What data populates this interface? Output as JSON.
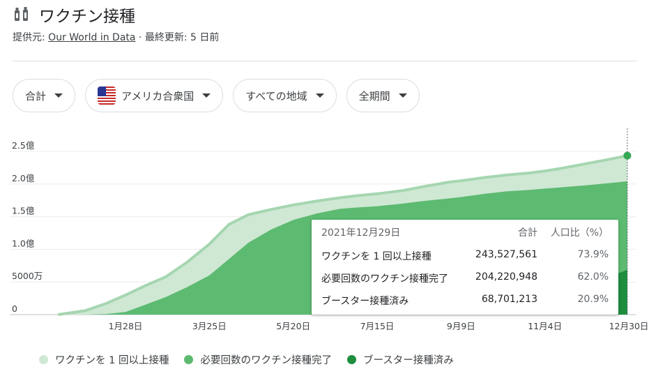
{
  "header": {
    "title": "ワクチン接種",
    "source_prefix": "提供元:",
    "source_link": "Our World in Data",
    "updated": " · 最終更新: 5 日前"
  },
  "filters": [
    {
      "label": "合計"
    },
    {
      "label": "アメリカ合衆国"
    },
    {
      "label": "すべての地域"
    },
    {
      "label": "全期間"
    }
  ],
  "tooltip": {
    "date": "2021年12月29日",
    "col_total": "合計",
    "col_pct": "人口比（%）",
    "rows": [
      {
        "label": "ワクチンを 1 回以上接種",
        "value": "243,527,561",
        "pct": "73.9%"
      },
      {
        "label": "必要回数のワクチン接種完了",
        "value": "204,220,948",
        "pct": "62.0%"
      },
      {
        "label": "ブースター接種済み",
        "value": "68,701,213",
        "pct": "20.9%"
      }
    ]
  },
  "colors": {
    "light": "#cfe8d4",
    "light_edge": "#a5d6b0",
    "medium": "#5dba71",
    "dark": "#1e8e3e"
  },
  "chart_data": {
    "type": "area",
    "x": [
      "2020-12-14",
      "2021-01-01",
      "2021-01-15",
      "2021-01-28",
      "2021-02-10",
      "2021-02-24",
      "2021-03-10",
      "2021-03-25",
      "2021-04-07",
      "2021-04-20",
      "2021-05-05",
      "2021-05-20",
      "2021-06-05",
      "2021-06-20",
      "2021-07-01",
      "2021-07-15",
      "2021-08-01",
      "2021-08-15",
      "2021-09-01",
      "2021-09-09",
      "2021-09-25",
      "2021-10-10",
      "2021-10-25",
      "2021-11-04",
      "2021-11-15",
      "2021-12-01",
      "2021-12-15",
      "2021-12-29"
    ],
    "series": [
      {
        "name": "ワクチンを 1 回以上接種",
        "values": [
          0,
          6,
          17,
          30,
          44,
          58,
          80,
          108,
          138,
          153,
          161,
          168,
          174,
          179,
          182,
          185,
          190,
          196,
          203,
          205,
          210,
          214,
          217,
          220,
          224,
          231,
          237,
          243.5
        ]
      },
      {
        "name": "必要回数のワクチン接種完了",
        "values": [
          0,
          0,
          1,
          4,
          15,
          27,
          42,
          60,
          85,
          110,
          130,
          145,
          155,
          162,
          164,
          166,
          170,
          174,
          178,
          180,
          185,
          189,
          191,
          193,
          195,
          198,
          201,
          204.2
        ]
      },
      {
        "name": "ブースター接種済み",
        "values": [
          0,
          0,
          0,
          0,
          0,
          0,
          0,
          0,
          0,
          0,
          0,
          0,
          0,
          0,
          0,
          0,
          0,
          0,
          0,
          0,
          0,
          2,
          12,
          22,
          33,
          45,
          56,
          68.7
        ]
      }
    ],
    "x_tick_labels": [
      "1月28日",
      "3月25日",
      "5月20日",
      "7月15日",
      "9月9日",
      "11月4日",
      "12月30日"
    ],
    "x_tick_dates": [
      "2021-01-28",
      "2021-03-25",
      "2021-05-20",
      "2021-07-15",
      "2021-09-09",
      "2021-11-04",
      "2021-12-30"
    ],
    "y_ticks": [
      {
        "value": 0,
        "label": "0"
      },
      {
        "value": 50,
        "label": "5000万"
      },
      {
        "value": 100,
        "label": "1.0億"
      },
      {
        "value": 150,
        "label": "1.5億"
      },
      {
        "value": 200,
        "label": "2.0億"
      },
      {
        "value": 250,
        "label": "2.5億"
      }
    ],
    "y_unit_note": "values in millions",
    "ylim": [
      0,
      250
    ],
    "grid": true,
    "highlight_date": "2021-12-29"
  }
}
